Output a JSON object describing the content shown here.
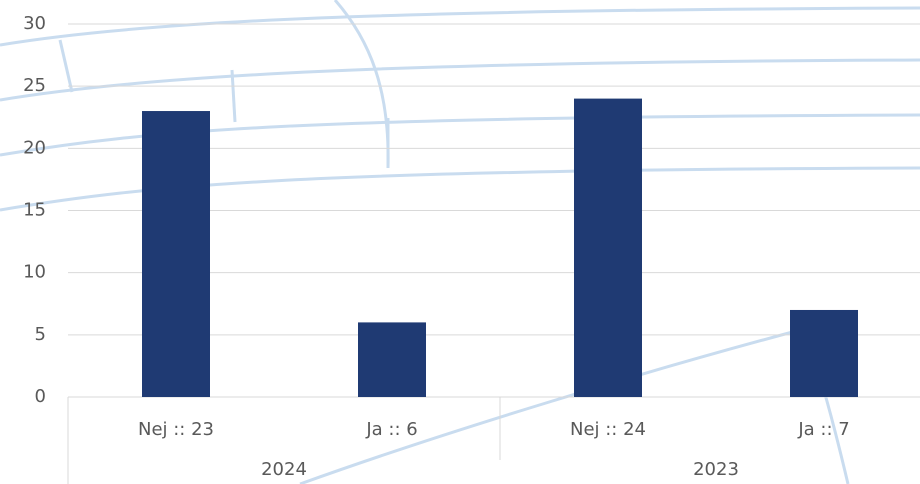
{
  "chart_data": {
    "type": "bar",
    "categories": [
      "Nej :: 23",
      "Ja :: 6",
      "Nej :: 24",
      "Ja :: 7"
    ],
    "groups": [
      "2024",
      "2023"
    ],
    "values": [
      23,
      6,
      24,
      7
    ],
    "color": "#1f3a73",
    "ylim": [
      0,
      30
    ],
    "yticks": [
      0,
      5,
      10,
      15,
      20,
      25,
      30
    ],
    "grid": true
  }
}
